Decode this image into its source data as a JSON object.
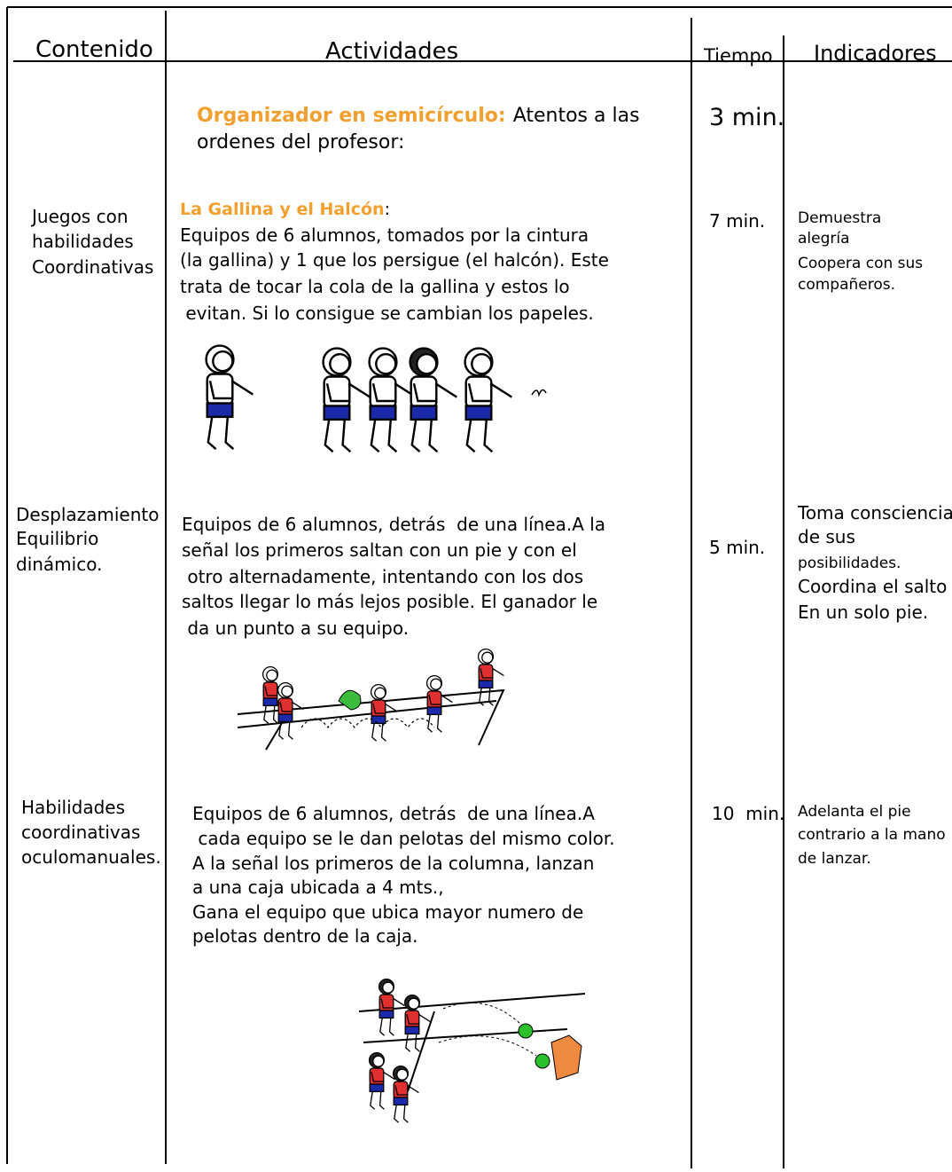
{
  "headers": [
    "Contenido",
    "Actividades",
    "Tiempo",
    "Indicadores"
  ],
  "intro": {
    "label": "Organizador en semicírculo:",
    "text": "Atentos a las",
    "text2": "ordenes del profesor:",
    "time": "3 min."
  },
  "rows": [
    {
      "contenido": [
        "Juegos con",
        "habilidades",
        "Coordinativas"
      ],
      "title": "La Gallina y el Halcón",
      "title_suffix": ":",
      "lines": [
        "Equipos de 6 alumnos, tomados por la cintura",
        "(la gallina) y 1 que los persigue (el halcón). Este",
        "trata de tocar la cola de la gallina y estos lo",
        " evitan. Si lo consigue se cambian los papeles."
      ],
      "time": "7 min.",
      "indicators": [
        "Demuestra",
        "alegría",
        "Coopera con sus",
        "compañeros."
      ]
    },
    {
      "contenido": [
        "Desplazamiento",
        "Equilibrio",
        "dinámico."
      ],
      "lines": [
        "Equipos de 6 alumnos, detrás  de una línea.A la",
        "señal los primeros saltan con un pie y con el",
        " otro alternadamente, intentando con los dos",
        "saltos llegar lo más lejos posible. El ganador le",
        " da un punto a su equipo."
      ],
      "time": "5 min.",
      "indicators": [
        "Toma consciencia",
        "de sus",
        "posibilidades.",
        "Coordina el salto",
        "En un solo pie."
      ]
    },
    {
      "contenido": [
        "Habilidades",
        "coordinativas",
        "oculomanuales."
      ],
      "lines": [
        "Equipos de 6 alumnos, detrás  de una línea.A",
        " cada equipo se le dan pelotas del mismo color.",
        "A la señal los primeros de la columna, lanzan",
        "a una caja ubicada a 4 mts.,",
        "Gana el equipo que ubica mayor numero de",
        "pelotas dentro de la caja."
      ],
      "time": "10  min.",
      "indicators": [
        "Adelanta el pie",
        "contrario a la mano",
        "de lanzar."
      ]
    }
  ]
}
